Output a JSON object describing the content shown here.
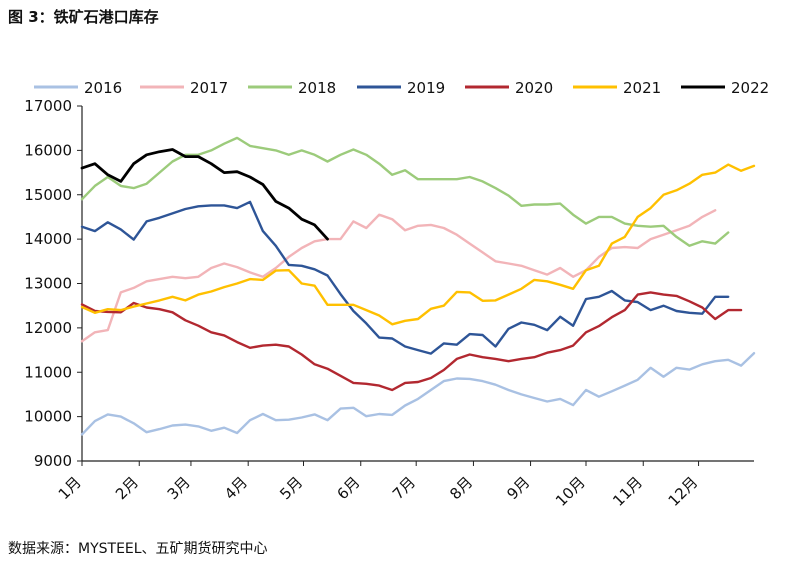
{
  "header": {
    "title": "图 3：铁矿石港口库存"
  },
  "footer": {
    "source": "数据来源：MYSTEEL、五矿期货研究中心"
  },
  "chart_data": {
    "type": "line",
    "title": "图 3：铁矿石港口库存",
    "xlabel": "",
    "ylabel": "",
    "ylim": [
      9000,
      17000
    ],
    "xlim": [
      0,
      52
    ],
    "yticks": [
      9000,
      10000,
      11000,
      12000,
      13000,
      14000,
      15000,
      16000,
      17000
    ],
    "x_ticks": [
      {
        "label": "1月",
        "week": 0
      },
      {
        "label": "2月",
        "week": 4.43
      },
      {
        "label": "3月",
        "week": 8.43
      },
      {
        "label": "4月",
        "week": 12.86
      },
      {
        "label": "5月",
        "week": 17.14
      },
      {
        "label": "6月",
        "week": 21.57
      },
      {
        "label": "7月",
        "week": 25.86
      },
      {
        "label": "8月",
        "week": 30.29
      },
      {
        "label": "9月",
        "week": 34.71
      },
      {
        "label": "10月",
        "week": 39.0
      },
      {
        "label": "11月",
        "week": 43.43
      },
      {
        "label": "12月",
        "week": 47.71
      }
    ],
    "legend_position": "top",
    "grid": false,
    "series": [
      {
        "name": "2016",
        "color": "#a9c1e3",
        "values": [
          9600,
          9900,
          10050,
          10000,
          9850,
          9650,
          9720,
          9800,
          9820,
          9780,
          9680,
          9750,
          9630,
          9920,
          10060,
          9920,
          9930,
          9980,
          10050,
          9920,
          10180,
          10200,
          10010,
          10060,
          10040,
          10250,
          10400,
          10600,
          10800,
          10860,
          10850,
          10800,
          10720,
          10600,
          10500,
          10420,
          10340,
          10400,
          10260,
          10600,
          10450,
          10570,
          10700,
          10830,
          11100,
          10900,
          11100,
          11060,
          11180,
          11250,
          11280,
          11150,
          11430
        ]
      },
      {
        "name": "2017",
        "color": "#f2b4b8",
        "values": [
          11700,
          11900,
          11950,
          12800,
          12900,
          13050,
          13100,
          13150,
          13120,
          13150,
          13350,
          13450,
          13370,
          13250,
          13150,
          13350,
          13600,
          13800,
          13950,
          14000,
          14000,
          14400,
          14250,
          14550,
          14450,
          14200,
          14300,
          14320,
          14250,
          14100,
          13900,
          13700,
          13500,
          13450,
          13400,
          13300,
          13200,
          13350,
          13150,
          13300,
          13600,
          13800,
          13820,
          13800,
          14000,
          14100,
          14200,
          14300,
          14500,
          14650
        ]
      },
      {
        "name": "2018",
        "color": "#9ccb7b",
        "values": [
          14900,
          15200,
          15400,
          15200,
          15150,
          15250,
          15500,
          15750,
          15900,
          15900,
          16000,
          16150,
          16280,
          16100,
          16050,
          16000,
          15900,
          16000,
          15900,
          15750,
          15900,
          16020,
          15900,
          15700,
          15450,
          15550,
          15350,
          15350,
          15350,
          15350,
          15400,
          15300,
          15150,
          14980,
          14750,
          14780,
          14780,
          14800,
          14550,
          14350,
          14500,
          14500,
          14350,
          14300,
          14280,
          14300,
          14050,
          13850,
          13950,
          13900,
          14150
        ]
      },
      {
        "name": "2019",
        "color": "#2e5597",
        "values": [
          14280,
          14180,
          14380,
          14220,
          13990,
          14400,
          14480,
          14580,
          14680,
          14740,
          14760,
          14760,
          14700,
          14840,
          14180,
          13850,
          13420,
          13400,
          13320,
          13180,
          12760,
          12380,
          12100,
          11780,
          11760,
          11580,
          11500,
          11420,
          11650,
          11620,
          11860,
          11840,
          11580,
          11980,
          12120,
          12070,
          11950,
          12250,
          12050,
          12650,
          12700,
          12830,
          12620,
          12580,
          12400,
          12500,
          12380,
          12340,
          12320,
          12700,
          12700
        ]
      },
      {
        "name": "2020",
        "color": "#b22830",
        "values": [
          12530,
          12380,
          12360,
          12350,
          12560,
          12460,
          12420,
          12350,
          12170,
          12050,
          11900,
          11830,
          11680,
          11550,
          11600,
          11620,
          11580,
          11400,
          11180,
          11080,
          10920,
          10760,
          10740,
          10700,
          10600,
          10760,
          10780,
          10870,
          11050,
          11300,
          11400,
          11340,
          11300,
          11250,
          11300,
          11340,
          11440,
          11500,
          11600,
          11900,
          12040,
          12240,
          12400,
          12750,
          12800,
          12750,
          12720,
          12600,
          12460,
          12200,
          12400,
          12400
        ]
      },
      {
        "name": "2021",
        "color": "#ffc000",
        "values": [
          12470,
          12340,
          12420,
          12400,
          12480,
          12550,
          12620,
          12700,
          12620,
          12750,
          12820,
          12920,
          13000,
          13100,
          13080,
          13290,
          13300,
          13000,
          12950,
          12520,
          12520,
          12520,
          12400,
          12280,
          12080,
          12160,
          12200,
          12430,
          12500,
          12810,
          12800,
          12610,
          12620,
          12750,
          12880,
          13080,
          13050,
          12970,
          12880,
          13300,
          13400,
          13900,
          14050,
          14500,
          14700,
          15000,
          15100,
          15250,
          15450,
          15500,
          15680,
          15540,
          15650
        ]
      },
      {
        "name": "2022",
        "color": "#000000",
        "values": [
          15600,
          15700,
          15450,
          15300,
          15700,
          15900,
          15970,
          16020,
          15860,
          15860,
          15700,
          15500,
          15520,
          15400,
          15230,
          14850,
          14700,
          14450,
          14320,
          14000
        ]
      }
    ]
  }
}
